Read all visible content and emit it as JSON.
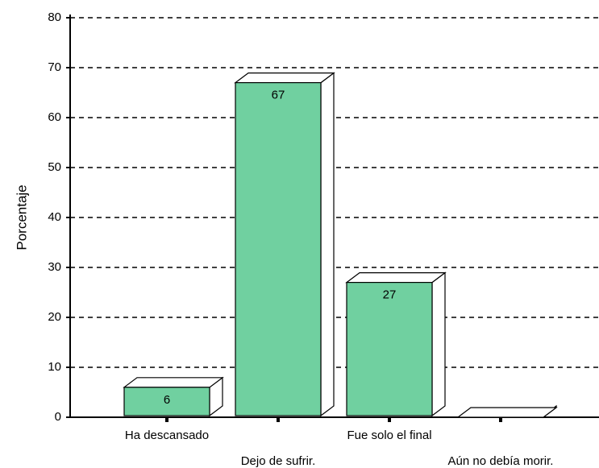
{
  "chart_data": {
    "type": "bar3d",
    "y_label": "Porcentaje",
    "categories": [
      "Ha descansado",
      "Dejo de sufrir.",
      "Fue solo el final",
      "Aún no debía morir."
    ],
    "values": [
      6,
      67,
      27,
      0
    ],
    "value_labels": [
      "6",
      "67",
      "27",
      null
    ],
    "color": "#70d0a0",
    "ylim": [
      0,
      80
    ],
    "yticks": [
      0,
      10,
      20,
      30,
      40,
      50,
      60,
      70,
      80
    ],
    "grid": true
  }
}
